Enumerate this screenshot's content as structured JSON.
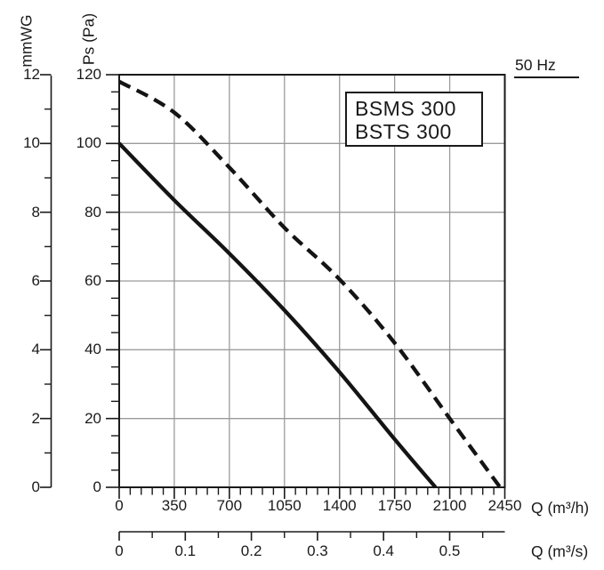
{
  "frequency_label": "50 Hz",
  "model_box": {
    "line1": "BSMS 300",
    "line2": "BSTS 300"
  },
  "colors": {
    "background": "#ffffff",
    "axis": "#1a1a1a",
    "grid": "#9b9b9b",
    "curve": "#141414"
  },
  "chart_data": {
    "type": "line",
    "title": "BSMS 300 / BSTS 300",
    "frequency": "50 Hz",
    "xlabel": "Q (m³/h)",
    "x2label": "Q (m³/s)",
    "ylabel": "Ps (Pa)",
    "y2label": "mmWG",
    "xlim": [
      0,
      2450
    ],
    "ylim": [
      0,
      120
    ],
    "y2lim": [
      0,
      12
    ],
    "grid": true,
    "legend_position": "none",
    "x_major_ticks": [
      0,
      350,
      700,
      1050,
      1400,
      1750,
      2100,
      2450
    ],
    "x_minor_step": 70,
    "y_major_ticks": [
      0,
      20,
      40,
      60,
      80,
      100,
      120
    ],
    "y_minor_step": 5,
    "y2_major_ticks": [
      0,
      2,
      4,
      6,
      8,
      10,
      12
    ],
    "y2_minor_step": 1,
    "x2_major_ticks": [
      0,
      0.1,
      0.2,
      0.3,
      0.4,
      0.5
    ],
    "x2_minor_step": 0.05,
    "x2_last_minor_tick": 0.55,
    "series": [
      {
        "name": "BSMS 300",
        "style": "solid",
        "points": [
          [
            0,
            100
          ],
          [
            350,
            83.5
          ],
          [
            700,
            68
          ],
          [
            1050,
            51.5
          ],
          [
            1400,
            33.5
          ],
          [
            1750,
            14
          ],
          [
            2010,
            0
          ]
        ]
      },
      {
        "name": "BSTS 300",
        "style": "dashed",
        "points": [
          [
            0,
            118
          ],
          [
            350,
            109
          ],
          [
            700,
            93
          ],
          [
            1050,
            75.5
          ],
          [
            1400,
            60.5
          ],
          [
            1750,
            42
          ],
          [
            2100,
            20
          ],
          [
            2420,
            0
          ]
        ]
      }
    ]
  }
}
